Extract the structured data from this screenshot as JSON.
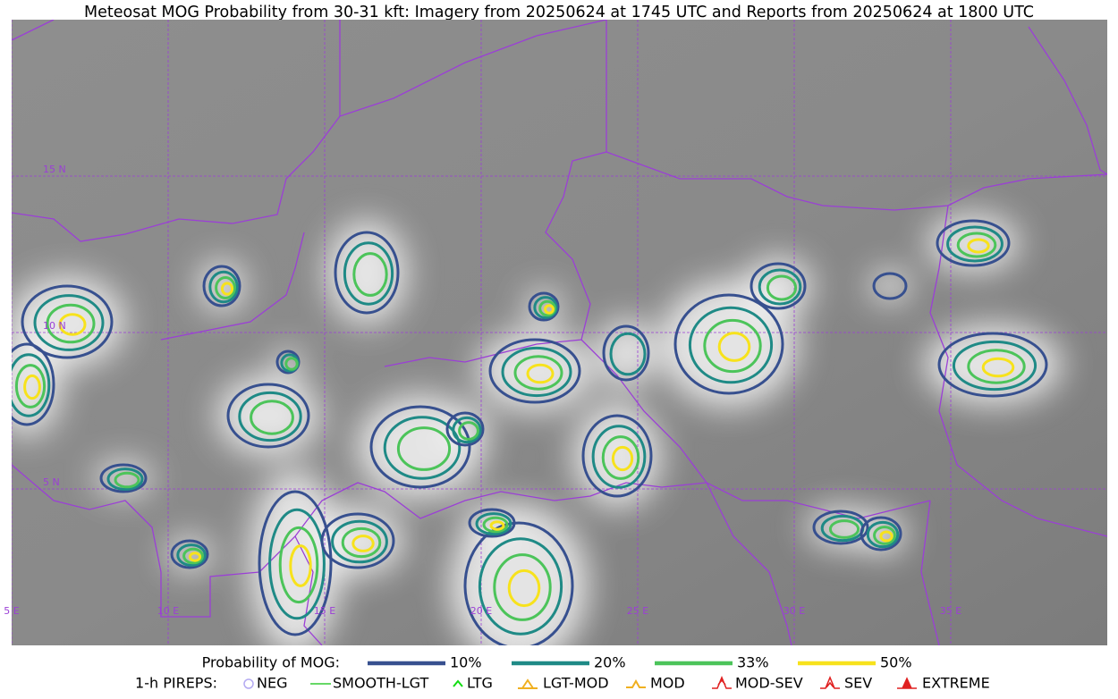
{
  "title": "Meteosat MOG Probability from 30-31 kft: Imagery from 20250624 at 1745 UTC and Reports from 20250624 at 1800 UTC",
  "grid": {
    "latitudes": [
      {
        "value": 15,
        "label": "15 N"
      },
      {
        "value": 10,
        "label": "10 N"
      },
      {
        "value": 5,
        "label": "5 N"
      }
    ],
    "longitudes": [
      {
        "value": 5,
        "label": "5 E"
      },
      {
        "value": 10,
        "label": "10 E"
      },
      {
        "value": 15,
        "label": "15 E"
      },
      {
        "value": 20,
        "label": "20 E"
      },
      {
        "value": 25,
        "label": "25 E"
      },
      {
        "value": 30,
        "label": "30 E"
      },
      {
        "value": 35,
        "label": "35 E"
      }
    ],
    "color": "#9b3fd6"
  },
  "legend": {
    "probability_title": "Probability of MOG:",
    "levels": [
      {
        "label": "10%",
        "color": "#37508f"
      },
      {
        "label": "20%",
        "color": "#1f8a86"
      },
      {
        "label": "33%",
        "color": "#4cc45a"
      },
      {
        "label": "50%",
        "color": "#f7e21c"
      }
    ],
    "pireps_title": "1-h PIREPS:",
    "pireps": [
      {
        "label": "NEG",
        "color": "#b4aaf2"
      },
      {
        "label": "SMOOTH-LGT",
        "color": "#33cc33"
      },
      {
        "label": "LTG",
        "color": "#11dd11"
      },
      {
        "label": "LGT-MOD",
        "color": "#f0b020"
      },
      {
        "label": "MOD",
        "color": "#f0b020"
      },
      {
        "label": "MOD-SEV",
        "color": "#e02020"
      },
      {
        "label": "SEV",
        "color": "#e02020"
      },
      {
        "label": "EXTREME",
        "color": "#e02020"
      }
    ]
  }
}
